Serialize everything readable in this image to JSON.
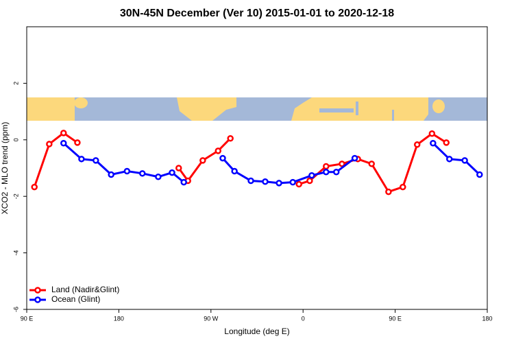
{
  "chart_data": {
    "type": "line",
    "title": "30N-45N December (Ver 10)   2015-01-01 to 2020-12-18",
    "x_label": "Longitude (deg E)",
    "y_label": "XCO2 - MLO trend (ppm)",
    "xlim": [
      90,
      540
    ],
    "xticks": [
      {
        "value": 90,
        "label": "90 E"
      },
      {
        "value": 180,
        "label": "180"
      },
      {
        "value": 270,
        "label": "90 W"
      },
      {
        "value": 360,
        "label": "0"
      },
      {
        "value": 450,
        "label": "90 E"
      },
      {
        "value": 540,
        "label": "180"
      }
    ],
    "ylim": [
      -6,
      4
    ],
    "yticks": [
      -6,
      -4,
      -2,
      0,
      2
    ],
    "legend": "bottom-left",
    "series": [
      {
        "name": "Land (Nadir&Glint)",
        "color": "#ff0000",
        "x": [
          97.5,
          112,
          126,
          139.5,
          null,
          238.5,
          247.5,
          262,
          277,
          289,
          null,
          356,
          366.5,
          382.5,
          398,
          413.5,
          427,
          443.5,
          457.5,
          471.5,
          486,
          500
        ],
        "values": [
          -1.67,
          -0.15,
          0.24,
          -0.1,
          null,
          -1.0,
          -1.45,
          -0.73,
          -0.39,
          0.05,
          null,
          -1.57,
          -1.45,
          -0.94,
          -0.85,
          -0.68,
          -0.85,
          -1.84,
          -1.67,
          -0.17,
          0.22,
          -0.1
        ]
      },
      {
        "name": "Ocean (Glint)",
        "color": "#0000ff",
        "x": [
          126,
          143.5,
          157.5,
          172.5,
          188,
          203,
          218.5,
          232,
          243.5,
          null,
          281.5,
          293,
          309,
          323,
          336.5,
          350,
          368.5,
          382.5,
          392.5,
          410.5,
          null,
          487,
          503,
          518,
          532.5
        ],
        "values": [
          -0.12,
          -0.68,
          -0.73,
          -1.23,
          -1.11,
          -1.19,
          -1.31,
          -1.16,
          -1.5,
          null,
          -0.65,
          -1.11,
          -1.45,
          -1.48,
          -1.53,
          -1.5,
          -1.26,
          -1.14,
          -1.14,
          -0.65,
          null,
          -0.12,
          -0.68,
          -0.73,
          -1.23
        ]
      }
    ]
  }
}
